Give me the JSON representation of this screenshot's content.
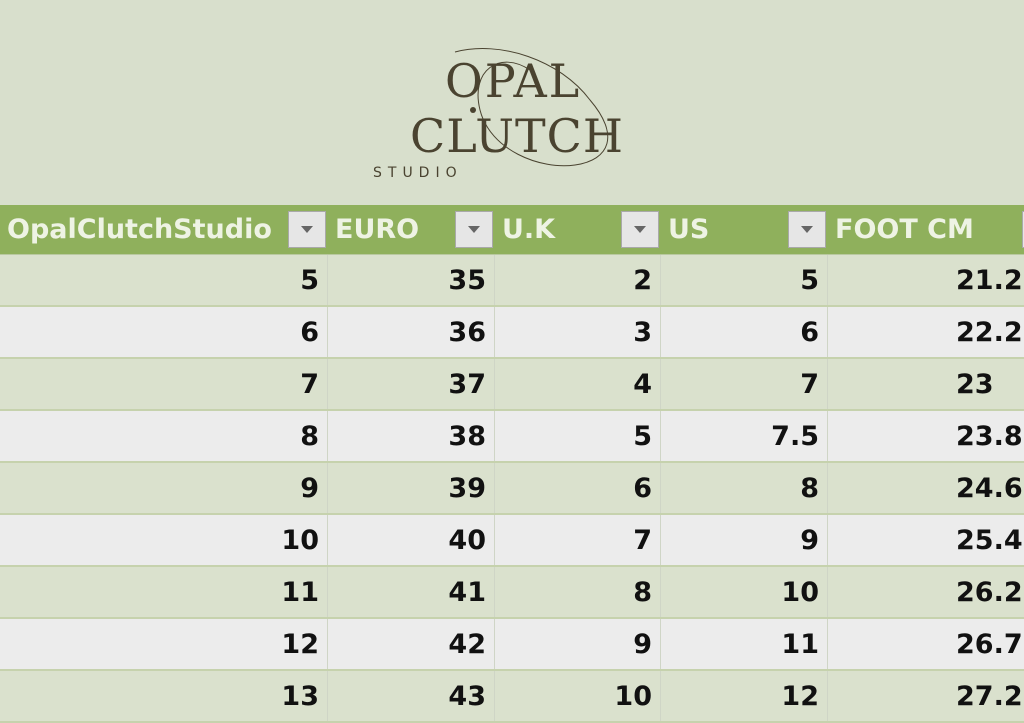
{
  "logo": {
    "line1": "OPAL",
    "line2": "CLUTCH",
    "line3": "STUDIO",
    "color": "#4a4330"
  },
  "colors": {
    "header": "#8fb05c",
    "row_odd": "#dae1cd",
    "row_even": "#ececec",
    "background": "#d8dfcc"
  },
  "headers": [
    "OpalClutchStudio",
    "EURO",
    "U.K",
    "US",
    "FOOT CM"
  ],
  "rows": [
    [
      "5",
      "35",
      "2",
      "5",
      "21.2"
    ],
    [
      "6",
      "36",
      "3",
      "6",
      "22.2"
    ],
    [
      "7",
      "37",
      "4",
      "7",
      "23"
    ],
    [
      "8",
      "38",
      "5",
      "7.5",
      "23.8"
    ],
    [
      "9",
      "39",
      "6",
      "8",
      "24.6"
    ],
    [
      "10",
      "40",
      "7",
      "9",
      "25.4"
    ],
    [
      "11",
      "41",
      "8",
      "10",
      "26.2"
    ],
    [
      "12",
      "42",
      "9",
      "11",
      "26.7"
    ],
    [
      "13",
      "43",
      "10",
      "12",
      "27.2"
    ]
  ]
}
